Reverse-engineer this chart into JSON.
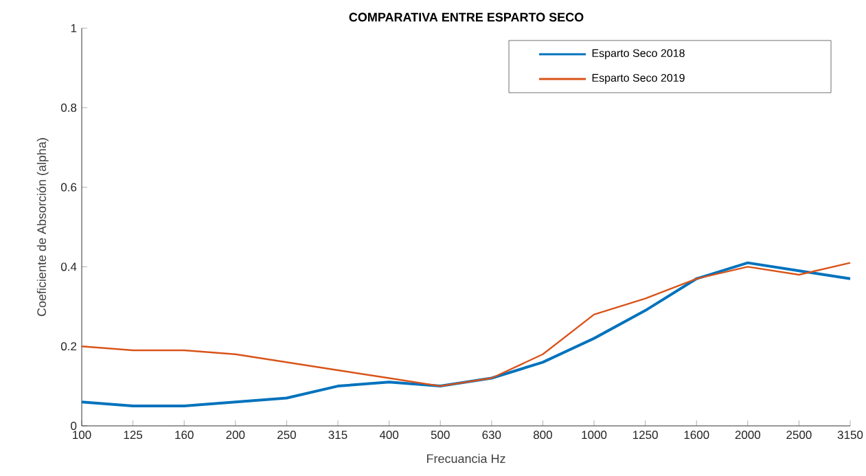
{
  "chart_data": {
    "type": "line",
    "title": "COMPARATIVA ENTRE ESPARTO SECO",
    "xlabel": "Frecuancia Hz",
    "ylabel": "Coeficiente de Absorción (alpha)",
    "categories": [
      "100",
      "125",
      "160",
      "200",
      "250",
      "315",
      "400",
      "500",
      "630",
      "800",
      "1000",
      "1250",
      "1600",
      "2000",
      "2500",
      "3150"
    ],
    "series": [
      {
        "name": "Esparto Seco 2018",
        "color": "#0072bd",
        "values": [
          0.06,
          0.05,
          0.05,
          0.06,
          0.07,
          0.1,
          0.11,
          0.1,
          0.12,
          0.16,
          0.22,
          0.29,
          0.37,
          0.41,
          0.39,
          0.37
        ]
      },
      {
        "name": "Esparto Seco 2019",
        "color": "#d95319",
        "values": [
          0.2,
          0.19,
          0.19,
          0.18,
          0.16,
          0.14,
          0.12,
          0.1,
          0.12,
          0.18,
          0.28,
          0.32,
          0.37,
          0.4,
          0.38,
          0.41
        ]
      }
    ],
    "ylim": [
      0,
      1
    ],
    "yticks": [
      0,
      0.2,
      0.4,
      0.6,
      0.8,
      1
    ],
    "grid": false,
    "legend": "top right",
    "marker": "none",
    "line_style": "solid"
  }
}
